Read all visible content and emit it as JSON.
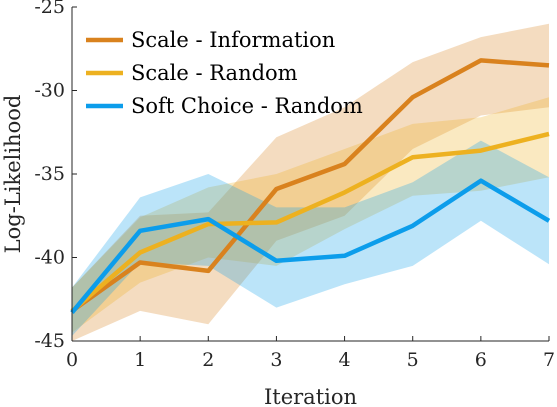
{
  "chart_data": {
    "type": "line",
    "xlabel": "Iteration",
    "ylabel": "Log-Likelihood",
    "xlim": [
      0,
      7
    ],
    "ylim": [
      -45,
      -25
    ],
    "x": [
      0,
      1,
      2,
      3,
      4,
      5,
      6,
      7
    ],
    "x_tick_labels": [
      "0",
      "1",
      "2",
      "3",
      "4",
      "5",
      "6",
      "7"
    ],
    "y_ticks": [
      -45,
      -40,
      -35,
      -30,
      -25
    ],
    "y_tick_labels": [
      "-45",
      "-40",
      "-35",
      "-30",
      "-25"
    ],
    "grid": false,
    "legend_position": "top-left",
    "series": [
      {
        "name": "Scale - Information",
        "color": "#D9821E",
        "values": [
          -43.2,
          -40.3,
          -40.8,
          -35.9,
          -34.4,
          -30.4,
          -28.2,
          -28.5
        ],
        "lower": [
          -45.0,
          -43.2,
          -44.0,
          -39.0,
          -37.5,
          -33.5,
          -31.5,
          -31.0
        ],
        "upper": [
          -41.8,
          -37.5,
          -37.3,
          -32.8,
          -31.0,
          -28.3,
          -26.8,
          -26.0
        ]
      },
      {
        "name": "Scale - Random",
        "color": "#EDB120",
        "values": [
          -43.2,
          -39.7,
          -38.0,
          -37.9,
          -36.1,
          -34.0,
          -33.6,
          -32.6
        ],
        "lower": [
          -44.5,
          -41.5,
          -40.0,
          -40.5,
          -38.3,
          -36.3,
          -36.0,
          -35.2
        ],
        "upper": [
          -41.8,
          -37.6,
          -35.8,
          -35.0,
          -33.5,
          -32.0,
          -31.6,
          -30.4
        ]
      },
      {
        "name": "Soft Choice - Random",
        "color": "#0C9DEB",
        "values": [
          -43.3,
          -38.4,
          -37.7,
          -40.2,
          -39.9,
          -38.1,
          -35.4,
          -37.8
        ],
        "lower": [
          -44.7,
          -40.3,
          -40.5,
          -43.0,
          -41.6,
          -40.5,
          -37.8,
          -40.4
        ],
        "upper": [
          -41.8,
          -36.4,
          -35.0,
          -37.0,
          -37.0,
          -35.5,
          -33.0,
          -35.2
        ]
      }
    ]
  }
}
